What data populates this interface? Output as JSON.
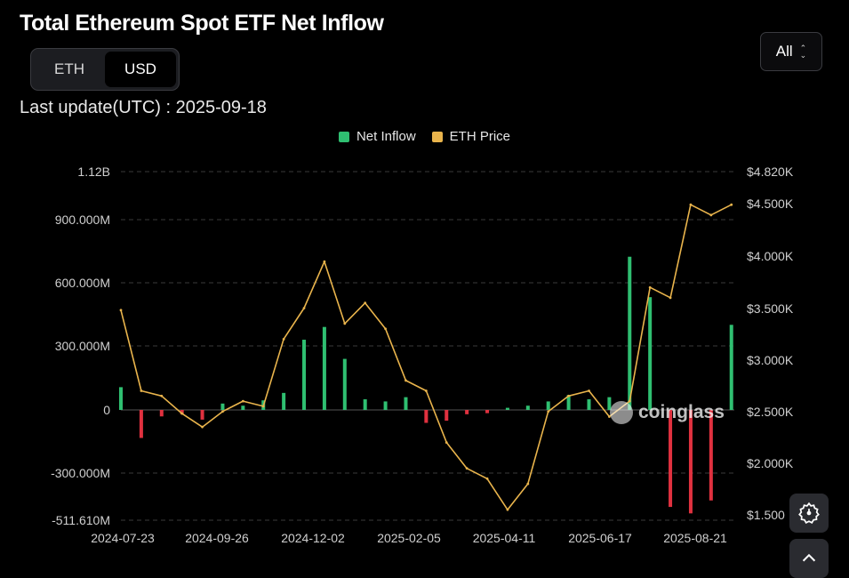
{
  "header": {
    "title": "Total Ethereum Spot ETF Net Inflow",
    "last_update": "Last update(UTC) : 2025-09-18"
  },
  "unit_toggle": {
    "options": [
      "ETH",
      "USD"
    ],
    "selected": "USD"
  },
  "range_select": {
    "value": "All"
  },
  "watermark": "coinglass",
  "icons": {
    "settings": "gear-icon",
    "scroll_top": "chevron-up-icon",
    "watermark_logo": "coinglass-logo"
  },
  "colors": {
    "inflow_positive": "#2fbf71",
    "inflow_negative": "#e0313f",
    "price": "#e9b44c",
    "background": "#000000",
    "grid": "#3a3a3a"
  },
  "chart_data": {
    "type": "bar",
    "legend": [
      "Net Inflow",
      "ETH Price"
    ],
    "legend_placement": "top-center",
    "grid": true,
    "x_tick_labels": [
      "2024-07-23",
      "2024-09-26",
      "2024-12-02",
      "2025-02-05",
      "2025-04-11",
      "2025-06-17",
      "2025-08-21"
    ],
    "y_left_tick_labels": [
      "1.12B",
      "900.000M",
      "600.000M",
      "300.000M",
      "0",
      "-300.000M",
      "-511.610M"
    ],
    "y_right_tick_labels": [
      "$4.820K",
      "$4.500K",
      "$4.000K",
      "$3.500K",
      "$3.000K",
      "$2.500K",
      "$2.000K",
      "$1.500"
    ],
    "y_left_range": [
      -511610000,
      1120000000
    ],
    "y_right_range": [
      1500,
      4820
    ],
    "series": [
      {
        "name": "Net Inflow",
        "axis": "left",
        "unit": "USD",
        "x": [
          "2024-07-23",
          "2024-08-06",
          "2024-08-20",
          "2024-09-03",
          "2024-09-17",
          "2024-10-01",
          "2024-10-15",
          "2024-10-29",
          "2024-11-12",
          "2024-11-26",
          "2024-12-10",
          "2024-12-24",
          "2025-01-07",
          "2025-01-21",
          "2025-02-04",
          "2025-02-18",
          "2025-03-04",
          "2025-03-18",
          "2025-04-01",
          "2025-04-15",
          "2025-04-29",
          "2025-05-13",
          "2025-05-27",
          "2025-06-10",
          "2025-06-24",
          "2025-07-08",
          "2025-07-22",
          "2025-08-05",
          "2025-08-19",
          "2025-09-02",
          "2025-09-16"
        ],
        "values": [
          107000000,
          -130000000,
          -30000000,
          -20000000,
          -45000000,
          30000000,
          20000000,
          45000000,
          80000000,
          330000000,
          390000000,
          240000000,
          50000000,
          40000000,
          60000000,
          -60000000,
          -50000000,
          -20000000,
          -15000000,
          10000000,
          20000000,
          40000000,
          70000000,
          50000000,
          60000000,
          720000000,
          530000000,
          -450000000,
          -480000000,
          -420000000,
          400000000
        ]
      },
      {
        "name": "ETH Price",
        "axis": "right",
        "unit": "USD",
        "x": [
          "2024-07-23",
          "2024-08-06",
          "2024-08-20",
          "2024-09-03",
          "2024-09-17",
          "2024-10-01",
          "2024-10-15",
          "2024-10-29",
          "2024-11-12",
          "2024-11-26",
          "2024-12-10",
          "2024-12-24",
          "2025-01-07",
          "2025-01-21",
          "2025-02-04",
          "2025-02-18",
          "2025-03-04",
          "2025-03-18",
          "2025-04-01",
          "2025-04-15",
          "2025-04-29",
          "2025-05-13",
          "2025-05-27",
          "2025-06-10",
          "2025-06-24",
          "2025-07-08",
          "2025-07-22",
          "2025-08-05",
          "2025-08-19",
          "2025-09-02",
          "2025-09-16"
        ],
        "values": [
          3480,
          2700,
          2650,
          2480,
          2350,
          2500,
          2600,
          2550,
          3200,
          3500,
          3950,
          3350,
          3550,
          3300,
          2800,
          2700,
          2200,
          1950,
          1850,
          1550,
          1800,
          2500,
          2650,
          2700,
          2450,
          2600,
          3700,
          3600,
          4500,
          4400,
          4500
        ]
      }
    ]
  }
}
